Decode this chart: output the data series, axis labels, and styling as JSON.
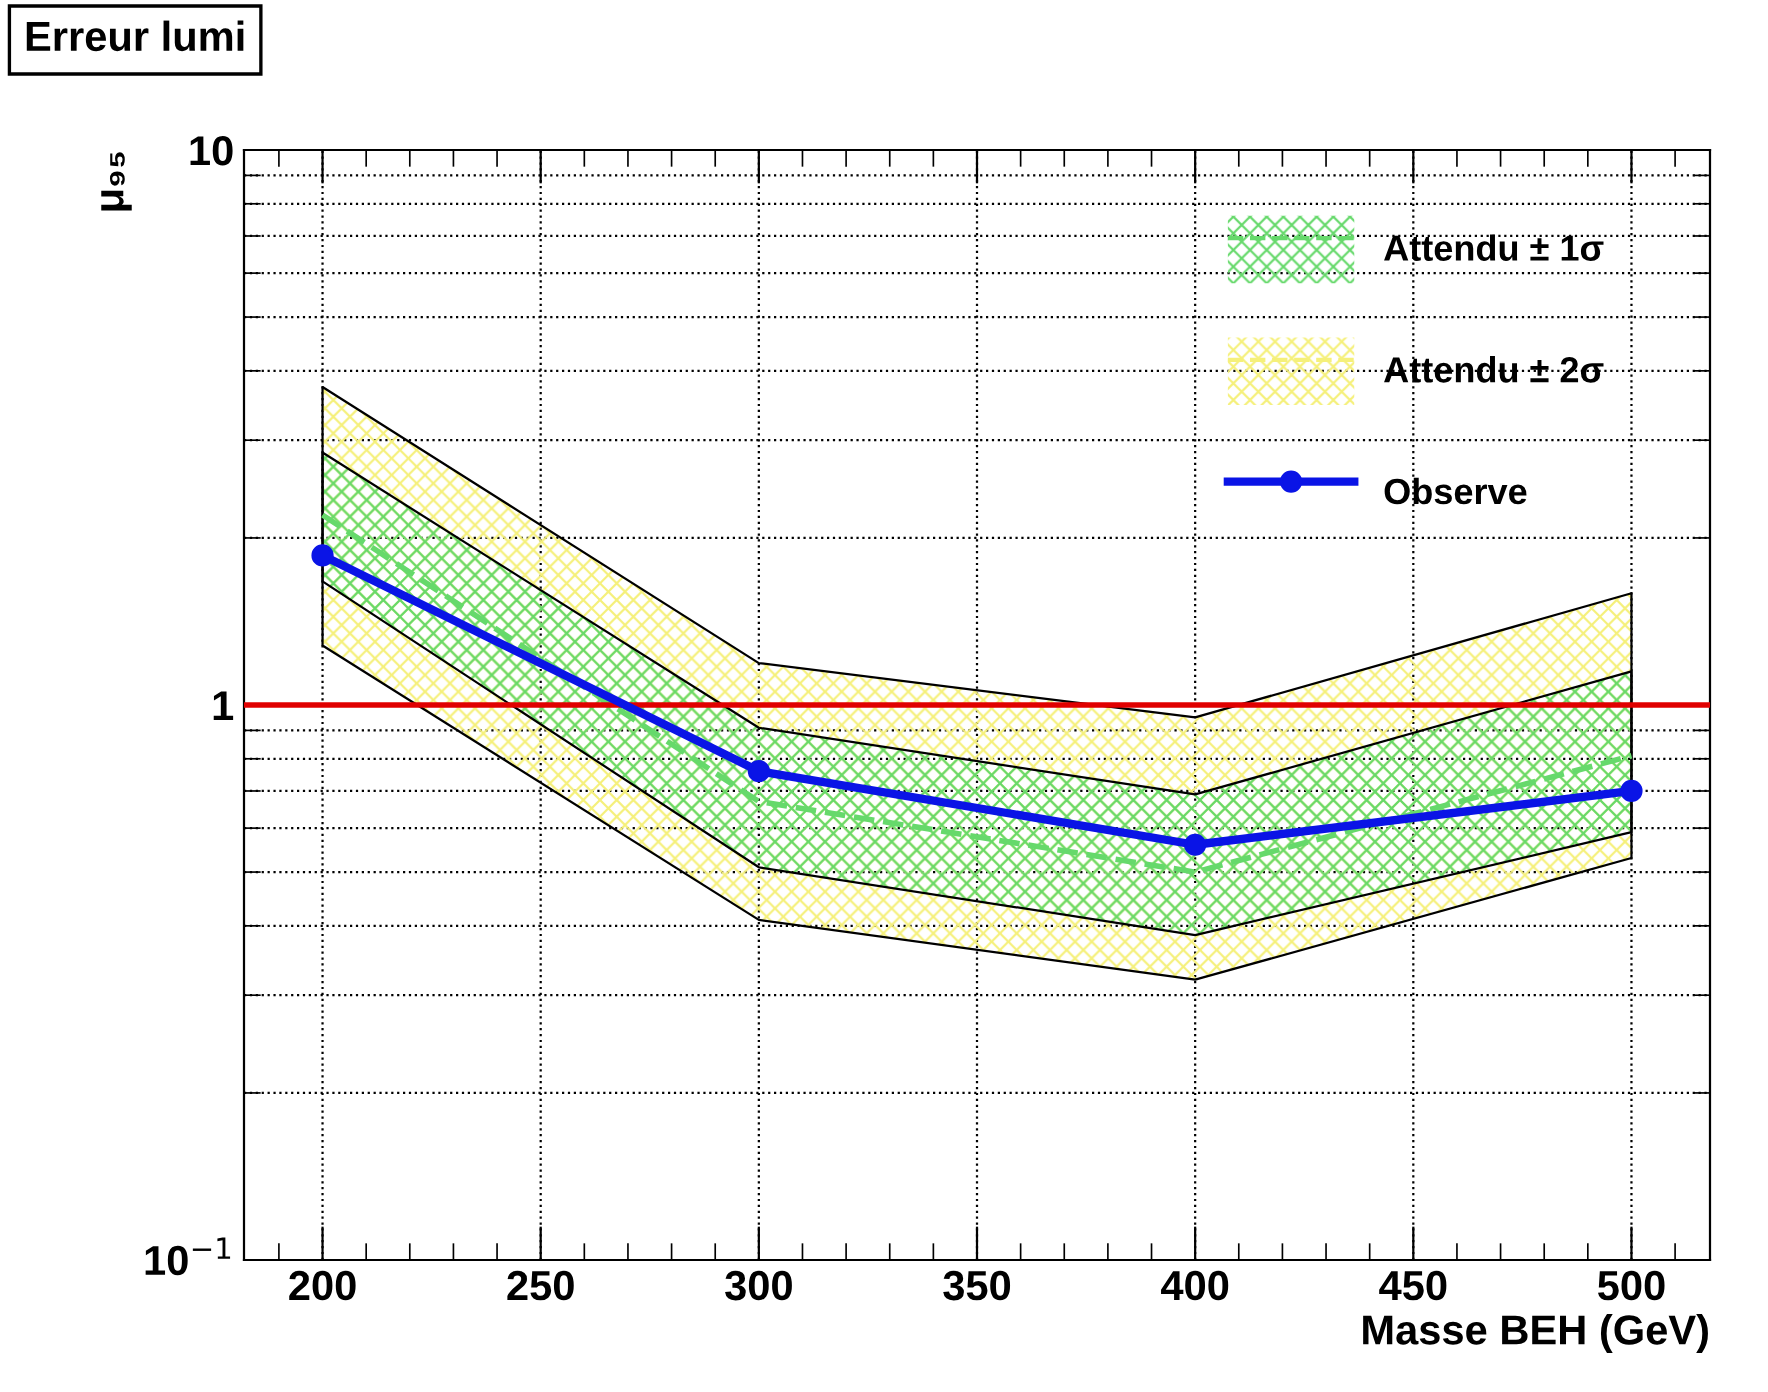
{
  "chart_data": {
    "type": "line",
    "title": "Erreur lumi",
    "xlabel": "Masse BEH (GeV)",
    "ylabel": "μ₉₅",
    "x": [
      200,
      300,
      400,
      500
    ],
    "series": [
      {
        "name": "Attendu ± 2σ",
        "color": "#f5f07a",
        "line_style": "dashed",
        "values": [
          null,
          null,
          null,
          null
        ],
        "lower": [
          1.28,
          0.41,
          0.32,
          0.53
        ],
        "upper": [
          3.74,
          1.19,
          0.95,
          1.59
        ]
      },
      {
        "name": "Attendu ± 1σ",
        "color": "#66d96b",
        "line_style": "dashed",
        "values": [
          2.2,
          0.67,
          0.5,
          0.81
        ],
        "lower": [
          1.67,
          0.51,
          0.385,
          0.59
        ],
        "upper": [
          2.85,
          0.91,
          0.69,
          1.15
        ]
      },
      {
        "name": "Observe",
        "color": "#0a14e6",
        "marker": "circle",
        "values": [
          1.86,
          0.76,
          0.56,
          0.7
        ]
      }
    ],
    "log": "y",
    "xlim": [
      182,
      518
    ],
    "xticks": [
      200,
      250,
      300,
      350,
      400,
      450,
      500
    ],
    "ylim": [
      0.1,
      10
    ],
    "yticks": [
      {
        "value": 0.1,
        "label": "10$^{−1}$"
      },
      1,
      10
    ],
    "ref_lines": [
      {
        "axis": "y",
        "value": 1,
        "color": "#e00000"
      }
    ],
    "grid": true,
    "legend": "top right"
  }
}
